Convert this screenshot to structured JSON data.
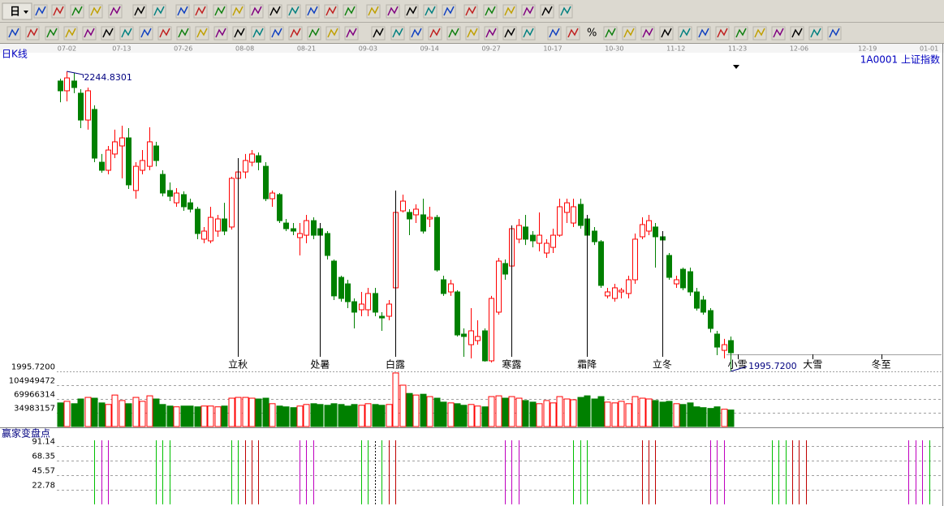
{
  "toolbar": {
    "period": "日",
    "percent": "%"
  },
  "chart_data": [
    {
      "type": "candlestick",
      "title": "日K线",
      "subtitle": "1A0001 上证指数",
      "categories": [
        null,
        "07-02",
        null,
        null,
        null,
        null,
        null,
        null,
        null,
        "07-13",
        null,
        null,
        null,
        null,
        null,
        null,
        null,
        null,
        "07-26",
        null,
        null,
        null,
        null,
        null,
        null,
        null,
        null,
        "08-08",
        null,
        null,
        null,
        null,
        null,
        null,
        null,
        null,
        "08-21",
        null,
        null,
        null,
        null,
        null,
        null,
        null,
        null,
        "09-03",
        null,
        null,
        null,
        null,
        null,
        null,
        null,
        null,
        "09-14",
        null,
        null,
        null,
        null,
        null,
        null,
        null,
        null,
        "09-27",
        null,
        null,
        null,
        null,
        null,
        null,
        null,
        null,
        "10-17",
        null,
        null,
        null,
        null,
        null,
        null,
        null,
        null,
        "10-30",
        null,
        null,
        null,
        null,
        null,
        null,
        null,
        null,
        "11-12",
        null,
        null,
        null,
        null,
        null,
        null,
        null,
        null,
        "11-23",
        null,
        null,
        null,
        null,
        null,
        null,
        null,
        null,
        "12-06",
        null,
        null,
        null,
        null,
        null,
        null,
        null,
        null,
        null,
        "12-19",
        null,
        null,
        null,
        null,
        null,
        null,
        null,
        null,
        "01-01"
      ],
      "open": [
        2236.8,
        2228.7,
        2236.8,
        2226.7,
        2204.4,
        2213.2,
        2169.4,
        2162.7,
        2176.2,
        2182.9,
        2189.6,
        2145.9,
        2162.7,
        2166.0,
        2182.9,
        2159.3,
        2145.9,
        2135.7,
        2142.5,
        2135.7,
        2130.4,
        2105.5,
        2104.1,
        2112.2,
        2122.3,
        2115.6,
        2156.0,
        2161.3,
        2169.4,
        2174.8,
        2166.0,
        2139.1,
        2142.5,
        2118.9,
        2114.2,
        2106.8,
        2108.8,
        2120.9,
        2114.2,
        2110.2,
        2087.3,
        2073.8,
        2068.4,
        2053.6,
        2046.9,
        2046.9,
        2060.4,
        2041.5,
        2041.5,
        2065.1,
        2129.0,
        2127.7,
        2125.7,
        2125.7,
        2122.3,
        2123.6,
        2071.8,
        2061.7,
        2061.7,
        2026.7,
        2017.9,
        2021.3,
        2029.4,
        2004.5,
        2044.9,
        2085.3,
        2083.2,
        2105.5,
        2115.6,
        2108.8,
        2102.1,
        2094.0,
        2098.7,
        2108.8,
        2127.7,
        2118.9,
        2134.4,
        2122.3,
        2112.2,
        2103.4,
        2058.4,
        2056.3,
        2061.7,
        2060.4,
        2071.8,
        2107.5,
        2112.2,
        2115.6,
        2107.5,
        2092.0,
        2068.4,
        2080.5,
        2078.5,
        2061.7,
        2055.0,
        2046.2,
        2026.7,
        2013.2,
        2021.3,
        null,
        null,
        null,
        null,
        null,
        null,
        null,
        null,
        null,
        null,
        null,
        null,
        null,
        null,
        null,
        null,
        null,
        null,
        null,
        null,
        null,
        null,
        null,
        null,
        null,
        null,
        null,
        null,
        null
      ],
      "high": [
        2238.8,
        2244.8301,
        2243.5,
        2230.0,
        2231.4,
        2216.6,
        2176.2,
        2182.9,
        2196.4,
        2199.7,
        2197.7,
        2169.4,
        2179.5,
        2198.4,
        2186.3,
        2162.7,
        2152.6,
        2147.9,
        2145.2,
        2139.1,
        2132.4,
        2115.6,
        2132.4,
        2125.7,
        2135.7,
        2157.3,
        2172.8,
        2176.2,
        2179.5,
        2177.5,
        2169.4,
        2145.9,
        2143.8,
        2122.3,
        2118.9,
        2118.9,
        2125.7,
        2123.6,
        2118.9,
        2112.2,
        2088.6,
        2075.2,
        2071.8,
        2056.3,
        2061.7,
        2065.1,
        2065.1,
        2044.9,
        2055.0,
        2145.9,
        2142.5,
        2130.4,
        2134.4,
        2139.1,
        2132.4,
        2125.7,
        2075.2,
        2071.8,
        2063.1,
        2031.4,
        2048.2,
        2038.1,
        2031.4,
        2058.4,
        2090.0,
        2088.6,
        2116.9,
        2122.3,
        2125.7,
        2112.2,
        2127.7,
        2105.5,
        2114.2,
        2139.1,
        2139.1,
        2139.1,
        2139.1,
        2125.7,
        2115.6,
        2104.8,
        2065.1,
        2068.4,
        2065.1,
        2075.2,
        2110.2,
        2123.6,
        2125.7,
        2118.9,
        2112.2,
        2094.0,
        2075.2,
        2081.9,
        2081.9,
        2065.1,
        2058.4,
        2048.2,
        2029.4,
        2022.7,
        2024.7,
        null,
        null,
        null,
        null,
        null,
        null,
        null,
        null,
        null,
        null,
        null,
        null,
        null,
        null,
        null,
        null,
        null,
        null,
        null,
        null,
        null,
        null,
        null,
        null,
        null,
        null,
        null,
        null,
        null
      ],
      "low": [
        2219.2,
        2219.9,
        2226.7,
        2197.7,
        2196.4,
        2169.4,
        2160.7,
        2159.3,
        2172.8,
        2156.0,
        2147.2,
        2139.1,
        2159.3,
        2162.7,
        2166.0,
        2141.1,
        2137.1,
        2132.4,
        2129.0,
        2127.7,
        2105.5,
        2102.1,
        2102.1,
        2107.5,
        2108.8,
        2113.5,
        2149.2,
        2156.0,
        2166.0,
        2162.7,
        2137.1,
        2132.4,
        2118.9,
        2112.2,
        2108.8,
        2092.0,
        2102.1,
        2105.5,
        2102.1,
        2088.6,
        2055.0,
        2053.6,
        2048.2,
        2031.4,
        2041.5,
        2041.5,
        2041.5,
        2029.4,
        2038.1,
        2063.1,
        2127.7,
        2108.8,
        2118.9,
        2110.2,
        2115.6,
        2078.5,
        2058.4,
        2058.4,
        2024.7,
        2007.8,
        2006.5,
        2017.9,
        2003.8,
        2003.1,
        2042.8,
        2071.8,
        2081.9,
        2102.1,
        2100.7,
        2098.7,
        2095.4,
        2090.0,
        2094.0,
        2107.5,
        2118.9,
        2115.6,
        2114.2,
        2107.5,
        2100.7,
        2065.1,
        2056.3,
        2053.6,
        2056.3,
        2056.3,
        2068.4,
        2105.5,
        2108.8,
        2081.9,
        2102.1,
        2071.8,
        2065.1,
        2063.1,
        2058.4,
        2046.2,
        2042.8,
        2028.0,
        2009.2,
        2006.5,
        1995.72,
        null,
        null,
        null,
        null,
        null,
        null,
        null,
        null,
        null,
        null,
        null,
        null,
        null,
        null,
        null,
        null,
        null,
        null,
        null,
        null,
        null,
        null,
        null,
        null,
        null,
        null,
        null,
        null,
        null
      ],
      "close": [
        2228.7,
        2239.4,
        2231.4,
        2204.4,
        2228.7,
        2172.8,
        2162.7,
        2179.5,
        2186.3,
        2189.6,
        2150.6,
        2166.0,
        2170.8,
        2186.3,
        2170.8,
        2143.8,
        2141.1,
        2143.8,
        2132.4,
        2130.4,
        2110.2,
        2112.2,
        2123.6,
        2122.3,
        2112.2,
        2156.0,
        2161.3,
        2170.8,
        2176.2,
        2169.4,
        2139.1,
        2143.8,
        2120.9,
        2114.2,
        2112.2,
        2110.2,
        2120.9,
        2108.8,
        2108.8,
        2092.0,
        2058.4,
        2056.3,
        2053.6,
        2044.9,
        2051.6,
        2060.4,
        2044.9,
        2040.1,
        2051.6,
        2127.7,
        2137.1,
        2122.3,
        2130.4,
        2112.2,
        2123.6,
        2079.9,
        2060.4,
        2068.4,
        2026.0,
        2024.7,
        2029.4,
        2024.7,
        2004.5,
        2056.3,
        2087.3,
        2076.5,
        2114.2,
        2116.9,
        2105.5,
        2104.1,
        2108.8,
        2102.1,
        2108.8,
        2132.4,
        2135.7,
        2132.4,
        2116.9,
        2108.8,
        2103.4,
        2067.1,
        2061.7,
        2065.1,
        2063.1,
        2071.8,
        2105.5,
        2117.6,
        2120.9,
        2107.5,
        2104.8,
        2073.8,
        2071.8,
        2065.1,
        2061.7,
        2048.2,
        2044.9,
        2031.4,
        2015.9,
        2017.9,
        2011.2,
        null,
        null,
        null,
        null,
        null,
        null,
        null,
        null,
        null,
        null,
        null,
        null,
        null,
        null,
        null,
        null,
        null,
        null,
        null,
        null,
        null,
        null,
        null,
        null,
        null,
        null,
        null,
        null,
        null
      ],
      "up_color": "#ff0000",
      "down_color": "#008000",
      "ylim": [
        1995.72,
        2244.8301
      ],
      "yticks": [
        {
          "value": 1995.72,
          "label": "1995.7200"
        }
      ],
      "extremes": {
        "high": {
          "value": 2244.8301,
          "label": "2244.8301"
        },
        "low": {
          "value": 1995.72,
          "label": "1995.7200"
        }
      },
      "annotations": [
        {
          "text": "立秋",
          "x": 26
        },
        {
          "text": "处暑",
          "x": 38
        },
        {
          "text": "白露",
          "x": 49
        },
        {
          "text": "寒露",
          "x": 66
        },
        {
          "text": "霜降",
          "x": 77
        },
        {
          "text": "立冬",
          "x": 88
        },
        {
          "text": "小雪",
          "x": 99
        },
        {
          "text": "大雪",
          "x": 110
        },
        {
          "text": "冬至",
          "x": 120
        }
      ]
    },
    {
      "type": "bar",
      "values": [
        60000000,
        64000000,
        58000000,
        70000000,
        74000000,
        72000000,
        60000000,
        56000000,
        80000000,
        66000000,
        58000000,
        74000000,
        64000000,
        78000000,
        70000000,
        56000000,
        52000000,
        50000000,
        52000000,
        52000000,
        50000000,
        52000000,
        52000000,
        50000000,
        52000000,
        72000000,
        74000000,
        74000000,
        72000000,
        70000000,
        72000000,
        58000000,
        52000000,
        50000000,
        48000000,
        52000000,
        56000000,
        58000000,
        56000000,
        54000000,
        58000000,
        56000000,
        52000000,
        56000000,
        54000000,
        58000000,
        56000000,
        54000000,
        56000000,
        136000000,
        105000000,
        84000000,
        80000000,
        82000000,
        76000000,
        72000000,
        62000000,
        60000000,
        58000000,
        54000000,
        56000000,
        52000000,
        50000000,
        76000000,
        78000000,
        72000000,
        76000000,
        72000000,
        66000000,
        62000000,
        58000000,
        66000000,
        60000000,
        76000000,
        70000000,
        68000000,
        74000000,
        78000000,
        70000000,
        76000000,
        62000000,
        60000000,
        64000000,
        58000000,
        76000000,
        72000000,
        70000000,
        66000000,
        62000000,
        64000000,
        58000000,
        56000000,
        60000000,
        50000000,
        48000000,
        46000000,
        50000000,
        44000000,
        42000000,
        null,
        null,
        null,
        null,
        null,
        null,
        null,
        null,
        null,
        null,
        null,
        null,
        null,
        null,
        null,
        null,
        null,
        null,
        null,
        null,
        null,
        null,
        null,
        null,
        null,
        null,
        null,
        null,
        null
      ],
      "ylim": [
        0,
        140000000
      ],
      "yticks": [
        104949472,
        69966314,
        34983157
      ]
    },
    {
      "type": "signal",
      "title": "赢家变盘点",
      "ylim": [
        0,
        100
      ],
      "yticks": [
        91.14,
        68.35,
        45.57,
        22.78
      ],
      "series": [
        {
          "color": "#00c000",
          "x": [
            5,
            14,
            15,
            16,
            25,
            26,
            44,
            45,
            47,
            75,
            76,
            77,
            104,
            105,
            106,
            127
          ],
          "values": [
            100,
            100,
            100,
            100,
            100,
            100,
            100,
            100,
            100,
            100,
            100,
            100,
            100,
            100,
            100,
            100
          ]
        },
        {
          "color": "#c000c0",
          "x": [
            6,
            7,
            35,
            36,
            37,
            65,
            66,
            67,
            95,
            96,
            97,
            124,
            125,
            126
          ],
          "values": [
            100,
            100,
            100,
            100,
            100,
            100,
            100,
            100,
            100,
            100,
            100,
            100,
            100,
            100
          ]
        },
        {
          "color": "#c00000",
          "x": [
            27,
            28,
            29,
            48,
            49,
            85,
            86,
            87,
            107,
            108,
            109
          ],
          "values": [
            100,
            100,
            100,
            100,
            100,
            100,
            100,
            100,
            100,
            100,
            100
          ]
        },
        {
          "color": "#000000",
          "dashed": true,
          "x": [
            46
          ],
          "values": [
            100
          ]
        }
      ]
    }
  ]
}
